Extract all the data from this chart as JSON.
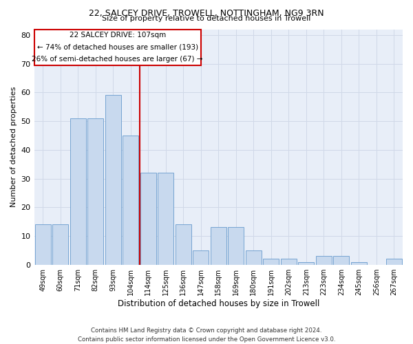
{
  "title1": "22, SALCEY DRIVE, TROWELL, NOTTINGHAM, NG9 3RN",
  "title2": "Size of property relative to detached houses in Trowell",
  "xlabel": "Distribution of detached houses by size in Trowell",
  "ylabel": "Number of detached properties",
  "categories": [
    "49sqm",
    "60sqm",
    "71sqm",
    "82sqm",
    "93sqm",
    "104sqm",
    "114sqm",
    "125sqm",
    "136sqm",
    "147sqm",
    "158sqm",
    "169sqm",
    "180sqm",
    "191sqm",
    "202sqm",
    "213sqm",
    "223sqm",
    "234sqm",
    "245sqm",
    "256sqm",
    "267sqm"
  ],
  "values": [
    14,
    14,
    51,
    51,
    59,
    45,
    32,
    32,
    14,
    5,
    13,
    13,
    5,
    2,
    2,
    1,
    3,
    3,
    1,
    0,
    2
  ],
  "bar_color": "#c8d9ee",
  "bar_edge_color": "#6699cc",
  "annotation_line1": "22 SALCEY DRIVE: 107sqm",
  "annotation_line2": "← 74% of detached houses are smaller (193)",
  "annotation_line3": "26% of semi-detached houses are larger (67) →",
  "annotation_box_color": "#cc0000",
  "vline_color": "#cc0000",
  "vline_x": 5.5,
  "ylim": [
    0,
    82
  ],
  "yticks": [
    0,
    10,
    20,
    30,
    40,
    50,
    60,
    70,
    80
  ],
  "footer": "Contains HM Land Registry data © Crown copyright and database right 2024.\nContains public sector information licensed under the Open Government Licence v3.0.",
  "grid_color": "#d0d8e8",
  "background_color": "#e8eef8"
}
